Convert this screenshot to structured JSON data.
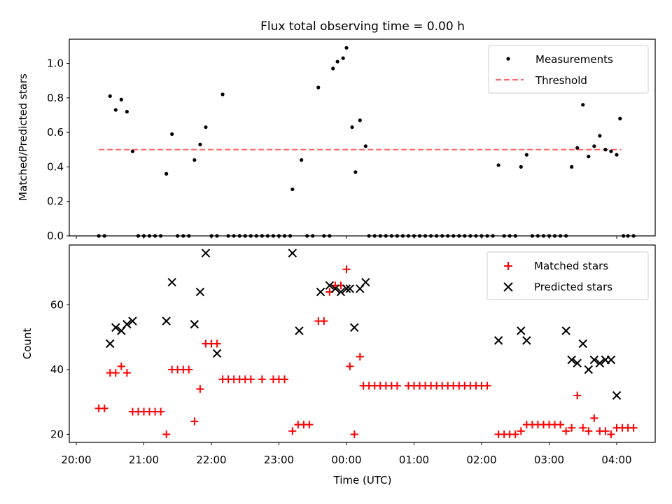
{
  "chart_data": [
    {
      "type": "scatter",
      "title": "Flux total observing time = 0.00 h",
      "xlabel": "",
      "ylabel": "Matched/Predicted stars",
      "xlim": [
        "19:58",
        "04:36"
      ],
      "ylim": [
        0,
        1.14
      ],
      "yticks": [
        0.0,
        0.2,
        0.4,
        0.6,
        0.8,
        1.0
      ],
      "ytick_labels": [
        "0.0",
        "0.2",
        "0.4",
        "0.6",
        "0.8",
        "1.0"
      ],
      "legend": {
        "placement": "top-right",
        "entries": [
          "Measurements",
          "Threshold"
        ]
      },
      "threshold": {
        "name": "Threshold",
        "y": 0.5,
        "x_range": [
          "20:20",
          "04:04"
        ],
        "color": "#ff6666",
        "style": "dashed"
      },
      "series": [
        {
          "name": "Measurements",
          "color": "#000000",
          "marker": "dot",
          "points": [
            [
              "20:20",
              0
            ],
            [
              "20:25",
              0
            ],
            [
              "20:30",
              0.81
            ],
            [
              "20:35",
              0.73
            ],
            [
              "20:40",
              0.79
            ],
            [
              "20:45",
              0.72
            ],
            [
              "20:50",
              0.49
            ],
            [
              "20:55",
              0
            ],
            [
              "21:00",
              0
            ],
            [
              "21:05",
              0
            ],
            [
              "21:10",
              0
            ],
            [
              "21:15",
              0
            ],
            [
              "21:20",
              0.36
            ],
            [
              "21:25",
              0.59
            ],
            [
              "21:30",
              0
            ],
            [
              "21:35",
              0
            ],
            [
              "21:40",
              0
            ],
            [
              "21:45",
              0.44
            ],
            [
              "21:50",
              0.53
            ],
            [
              "21:55",
              0.63
            ],
            [
              "22:00",
              0
            ],
            [
              "22:05",
              0
            ],
            [
              "22:10",
              0.82
            ],
            [
              "22:15",
              0
            ],
            [
              "22:20",
              0
            ],
            [
              "22:25",
              0
            ],
            [
              "22:30",
              0
            ],
            [
              "22:35",
              0
            ],
            [
              "22:40",
              0
            ],
            [
              "22:45",
              0
            ],
            [
              "22:50",
              0
            ],
            [
              "22:55",
              0
            ],
            [
              "23:00",
              0
            ],
            [
              "23:05",
              0
            ],
            [
              "23:10",
              0
            ],
            [
              "23:12",
              0.27
            ],
            [
              "23:20",
              0.44
            ],
            [
              "23:25",
              0
            ],
            [
              "23:30",
              0
            ],
            [
              "23:35",
              0.86
            ],
            [
              "23:40",
              0
            ],
            [
              "23:45",
              0
            ],
            [
              "23:48",
              0.97
            ],
            [
              "23:52",
              1.01
            ],
            [
              "23:57",
              1.03
            ],
            [
              "00:00",
              1.09
            ],
            [
              "00:05",
              0.63
            ],
            [
              "00:08",
              0.37
            ],
            [
              "00:12",
              0.67
            ],
            [
              "00:17",
              0.52
            ],
            [
              "00:20",
              0
            ],
            [
              "00:25",
              0
            ],
            [
              "00:30",
              0
            ],
            [
              "00:35",
              0
            ],
            [
              "00:40",
              0
            ],
            [
              "00:45",
              0
            ],
            [
              "00:50",
              0
            ],
            [
              "00:55",
              0
            ],
            [
              "01:00",
              0
            ],
            [
              "01:05",
              0
            ],
            [
              "01:10",
              0
            ],
            [
              "01:15",
              0
            ],
            [
              "01:20",
              0
            ],
            [
              "01:25",
              0
            ],
            [
              "01:30",
              0
            ],
            [
              "01:35",
              0
            ],
            [
              "01:40",
              0
            ],
            [
              "01:45",
              0
            ],
            [
              "01:50",
              0
            ],
            [
              "01:55",
              0
            ],
            [
              "02:00",
              0
            ],
            [
              "02:05",
              0
            ],
            [
              "02:10",
              0
            ],
            [
              "02:15",
              0.41
            ],
            [
              "02:20",
              0
            ],
            [
              "02:25",
              0
            ],
            [
              "02:30",
              0
            ],
            [
              "02:35",
              0.4
            ],
            [
              "02:40",
              0.47
            ],
            [
              "02:45",
              0
            ],
            [
              "02:50",
              0
            ],
            [
              "02:55",
              0
            ],
            [
              "03:00",
              0
            ],
            [
              "03:05",
              0
            ],
            [
              "03:10",
              0
            ],
            [
              "03:15",
              0
            ],
            [
              "03:20",
              0.4
            ],
            [
              "03:25",
              0.51
            ],
            [
              "03:30",
              0.76
            ],
            [
              "03:35",
              0.46
            ],
            [
              "03:40",
              0.52
            ],
            [
              "03:45",
              0.58
            ],
            [
              "03:50",
              0.5
            ],
            [
              "03:55",
              0.49
            ],
            [
              "04:00",
              0.47
            ],
            [
              "04:03",
              0.68
            ],
            [
              "04:06",
              0
            ],
            [
              "04:10",
              0
            ],
            [
              "04:15",
              0
            ]
          ]
        }
      ]
    },
    {
      "type": "scatter",
      "title": "",
      "xlabel": "Time (UTC)",
      "ylabel": "Count",
      "xlim": [
        "19:58",
        "04:36"
      ],
      "ylim": [
        17.5,
        78.5
      ],
      "yticks": [
        20,
        40,
        60
      ],
      "ytick_labels": [
        "20",
        "40",
        "60"
      ],
      "xticks": [
        "20:00",
        "21:00",
        "22:00",
        "23:00",
        "00:00",
        "01:00",
        "02:00",
        "03:00",
        "04:00"
      ],
      "legend": {
        "placement": "top-right",
        "entries": [
          "Matched stars",
          "Predicted stars"
        ]
      },
      "series": [
        {
          "name": "Matched stars",
          "color": "#ff0000",
          "marker": "plus",
          "points": [
            [
              "20:20",
              28
            ],
            [
              "20:25",
              28
            ],
            [
              "20:30",
              39
            ],
            [
              "20:35",
              39
            ],
            [
              "20:40",
              41
            ],
            [
              "20:45",
              39
            ],
            [
              "20:50",
              27
            ],
            [
              "20:55",
              27
            ],
            [
              "21:00",
              27
            ],
            [
              "21:05",
              27
            ],
            [
              "21:10",
              27
            ],
            [
              "21:15",
              27
            ],
            [
              "21:20",
              20
            ],
            [
              "21:25",
              40
            ],
            [
              "21:30",
              40
            ],
            [
              "21:35",
              40
            ],
            [
              "21:40",
              40
            ],
            [
              "21:45",
              24
            ],
            [
              "21:50",
              34
            ],
            [
              "21:55",
              48
            ],
            [
              "22:00",
              48
            ],
            [
              "22:05",
              48
            ],
            [
              "22:10",
              37
            ],
            [
              "22:15",
              37
            ],
            [
              "22:20",
              37
            ],
            [
              "22:25",
              37
            ],
            [
              "22:30",
              37
            ],
            [
              "22:35",
              37
            ],
            [
              "22:45",
              37
            ],
            [
              "22:55",
              37
            ],
            [
              "23:00",
              37
            ],
            [
              "23:05",
              37
            ],
            [
              "23:12",
              21
            ],
            [
              "23:17",
              23
            ],
            [
              "23:22",
              23
            ],
            [
              "23:27",
              23
            ],
            [
              "23:35",
              55
            ],
            [
              "23:40",
              55
            ],
            [
              "23:45",
              64
            ],
            [
              "23:50",
              66
            ],
            [
              "23:55",
              66
            ],
            [
              "24:00",
              71
            ],
            [
              "24:03",
              41
            ],
            [
              "24:07",
              20
            ],
            [
              "24:12",
              44
            ],
            [
              "24:15",
              35
            ],
            [
              "24:20",
              35
            ],
            [
              "24:25",
              35
            ],
            [
              "24:30",
              35
            ],
            [
              "24:35",
              35
            ],
            [
              "24:40",
              35
            ],
            [
              "24:45",
              35
            ],
            [
              "24:55",
              35
            ],
            [
              "25:00",
              35
            ],
            [
              "25:05",
              35
            ],
            [
              "25:10",
              35
            ],
            [
              "25:15",
              35
            ],
            [
              "25:20",
              35
            ],
            [
              "25:25",
              35
            ],
            [
              "25:30",
              35
            ],
            [
              "25:35",
              35
            ],
            [
              "25:40",
              35
            ],
            [
              "25:45",
              35
            ],
            [
              "25:50",
              35
            ],
            [
              "25:55",
              35
            ],
            [
              "26:00",
              35
            ],
            [
              "26:05",
              35
            ],
            [
              "26:15",
              20
            ],
            [
              "26:20",
              20
            ],
            [
              "26:25",
              20
            ],
            [
              "26:30",
              20
            ],
            [
              "26:35",
              21
            ],
            [
              "26:40",
              23
            ],
            [
              "26:45",
              23
            ],
            [
              "26:50",
              23
            ],
            [
              "26:55",
              23
            ],
            [
              "27:00",
              23
            ],
            [
              "27:05",
              23
            ],
            [
              "27:10",
              23
            ],
            [
              "27:15",
              21
            ],
            [
              "27:20",
              22
            ],
            [
              "27:25",
              32
            ],
            [
              "27:30",
              22
            ],
            [
              "27:35",
              21
            ],
            [
              "27:40",
              25
            ],
            [
              "27:45",
              21
            ],
            [
              "27:50",
              21
            ],
            [
              "27:55",
              20
            ],
            [
              "28:00",
              22
            ],
            [
              "28:05",
              22
            ],
            [
              "28:10",
              22
            ],
            [
              "28:15",
              22
            ]
          ]
        },
        {
          "name": "Predicted stars",
          "color": "#000000",
          "marker": "x",
          "points": [
            [
              "20:30",
              48
            ],
            [
              "20:35",
              53
            ],
            [
              "20:40",
              52
            ],
            [
              "20:45",
              54
            ],
            [
              "20:50",
              55
            ],
            [
              "21:20",
              55
            ],
            [
              "21:25",
              67
            ],
            [
              "21:45",
              54
            ],
            [
              "21:50",
              64
            ],
            [
              "21:55",
              76
            ],
            [
              "22:05",
              45
            ],
            [
              "23:12",
              76
            ],
            [
              "23:18",
              52
            ],
            [
              "23:37",
              64
            ],
            [
              "23:45",
              66
            ],
            [
              "23:50",
              65
            ],
            [
              "23:55",
              64
            ],
            [
              "24:00",
              65
            ],
            [
              "24:03",
              65
            ],
            [
              "24:07",
              53
            ],
            [
              "24:12",
              65
            ],
            [
              "24:17",
              67
            ],
            [
              "26:15",
              49
            ],
            [
              "26:35",
              52
            ],
            [
              "26:40",
              49
            ],
            [
              "27:15",
              52
            ],
            [
              "27:20",
              43
            ],
            [
              "27:25",
              42
            ],
            [
              "27:30",
              48
            ],
            [
              "27:35",
              40
            ],
            [
              "27:40",
              43
            ],
            [
              "27:45",
              42
            ],
            [
              "27:50",
              43
            ],
            [
              "27:55",
              43
            ],
            [
              "28:00",
              32
            ]
          ]
        }
      ]
    }
  ]
}
